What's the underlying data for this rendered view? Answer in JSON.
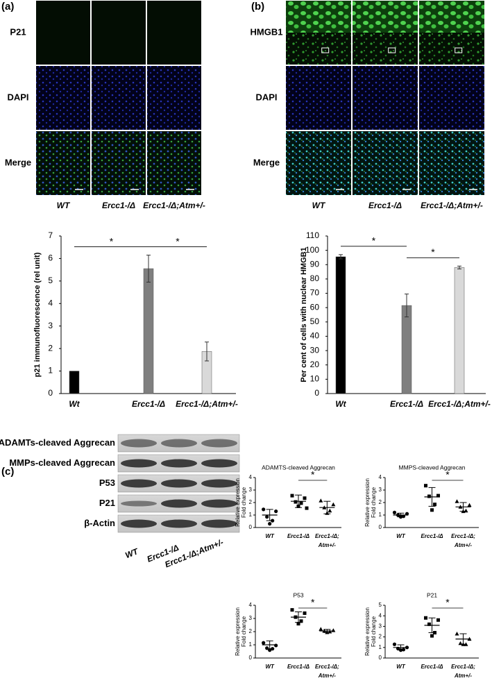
{
  "panels": {
    "a": "(a)",
    "b": "(b)",
    "c": "(c)"
  },
  "images_a": {
    "rows": [
      "P21",
      "DAPI",
      "Merge"
    ],
    "columns": [
      "WT",
      "Ercc1-/Δ",
      "Ercc1-/Δ;Atm+/-"
    ]
  },
  "images_b": {
    "rows": [
      "HMGB1",
      "DAPI",
      "Merge"
    ],
    "columns": [
      "WT",
      "Ercc1-/Δ",
      "Ercc1-/Δ;Atm+/-"
    ]
  },
  "blot": {
    "rows": [
      "ADAMTs-cleaved Aggrecan",
      "MMPs-cleaved Aggrecan",
      "P53",
      "P21",
      "β-Actin"
    ],
    "columns": [
      "WT",
      "Ercc1-/Δ",
      "Ercc1-/Δ;Atm+/-"
    ]
  },
  "chart_data": [
    {
      "type": "bar",
      "ylabel": "p21 immunofluorescence (rel unit)",
      "categories": [
        "Wt",
        "Ercc1-/Δ",
        "Ercc1-/Δ;Atm+/-"
      ],
      "values": [
        1,
        5.55,
        1.87
      ],
      "errors": [
        null,
        0.6,
        0.42
      ],
      "colors": [
        "#000000",
        "#7f7f7f",
        "#d9d9d9"
      ],
      "ylim": [
        0,
        7
      ],
      "yticks": [
        0,
        1,
        2,
        3,
        4,
        5,
        6,
        7
      ],
      "comparisons": [
        {
          "label": "*",
          "pair": [
            0,
            1
          ]
        },
        {
          "label": "*",
          "pair": [
            1,
            2
          ]
        }
      ]
    },
    {
      "type": "bar",
      "ylabel": "Per cent of cells with nuclear HMGB1",
      "categories": [
        "Wt",
        "Ercc1-/Δ",
        "Ercc1-/Δ;Atm+/-"
      ],
      "values": [
        95.5,
        61.5,
        88
      ],
      "errors": [
        1.5,
        8,
        1
      ],
      "colors": [
        "#000000",
        "#7f7f7f",
        "#d9d9d9"
      ],
      "ylim": [
        0,
        110
      ],
      "yticks": [
        0,
        10,
        20,
        30,
        40,
        50,
        60,
        70,
        80,
        90,
        100,
        110
      ],
      "comparisons": [
        {
          "label": "*",
          "pair": [
            0,
            1
          ]
        },
        {
          "label": "*",
          "pair": [
            1,
            2
          ]
        }
      ]
    },
    {
      "type": "dot",
      "title": "ADAMTS-cleaved Aggrecan",
      "ylabel": [
        "Relative expression",
        "Fold change"
      ],
      "categories": [
        "WT",
        "Ercc1-/Δ",
        [
          "Ercc1-/Δ;",
          "Atm+/-"
        ]
      ],
      "points": [
        [
          1.45,
          1.3,
          0.85,
          0.55,
          0.3
        ],
        [
          2.55,
          2.35,
          2.05,
          1.95,
          1.7,
          1.55
        ],
        [
          2.15,
          1.85,
          1.6,
          1.35,
          1.15
        ]
      ],
      "means": [
        1.0,
        2.1,
        1.6
      ],
      "sd": [
        0.45,
        0.5,
        0.5
      ],
      "ylim": [
        0,
        4
      ],
      "yticks": [
        0,
        1,
        2,
        3,
        4
      ],
      "comparisons": [
        {
          "label": "*",
          "pair": [
            1,
            2
          ]
        }
      ]
    },
    {
      "type": "dot",
      "title": "MMPS-cleaved Aggrecan",
      "ylabel": [
        "Relative expression",
        "Fold change"
      ],
      "categories": [
        "WT",
        "Ercc1-/Δ",
        [
          "Ercc1-/Δ;",
          "Atm+/-"
        ]
      ],
      "points": [
        [
          1.2,
          1.1,
          1.0,
          0.9,
          0.85
        ],
        [
          3.35,
          2.55,
          2.5,
          1.85,
          1.4
        ],
        [
          2.1,
          1.8,
          1.65,
          1.35,
          1.3
        ]
      ],
      "means": [
        1.0,
        2.45,
        1.65
      ],
      "sd": [
        0.15,
        0.75,
        0.35
      ],
      "ylim": [
        0,
        4
      ],
      "yticks": [
        0,
        1,
        2,
        3,
        4
      ],
      "comparisons": [
        {
          "label": "*",
          "pair": [
            1,
            2
          ]
        }
      ]
    },
    {
      "type": "dot",
      "title": "P53",
      "ylabel": [
        "Relative expression",
        "Fold change"
      ],
      "categories": [
        "WT",
        "Ercc1-/Δ",
        [
          "Ercc1-/Δ;",
          "Atm+/-"
        ]
      ],
      "points": [
        [
          1.15,
          0.95,
          0.75,
          0.7,
          0.6
        ],
        [
          3.65,
          3.4,
          3.1,
          2.8,
          2.6
        ],
        [
          2.2,
          2.1,
          2.05,
          2.0,
          1.95
        ]
      ],
      "means": [
        1.0,
        3.1,
        2.05
      ],
      "sd": [
        0.3,
        0.4,
        0.12
      ],
      "ylim": [
        0,
        4
      ],
      "yticks": [
        0,
        1,
        2,
        3,
        4
      ],
      "comparisons": [
        {
          "label": "*",
          "pair": [
            1,
            2
          ]
        }
      ]
    },
    {
      "type": "dot",
      "title": "P21",
      "ylabel": [
        "Relative expression",
        "Fold change"
      ],
      "categories": [
        "WT",
        "Ercc1-/Δ",
        [
          "Ercc1-/Δ;",
          "Atm+/-"
        ]
      ],
      "points": [
        [
          1.3,
          1.0,
          0.9,
          0.8,
          0.75
        ],
        [
          3.8,
          3.6,
          3.2,
          2.4,
          2.1
        ],
        [
          2.3,
          1.8,
          1.4,
          1.3,
          1.3
        ]
      ],
      "means": [
        1.0,
        3.1,
        1.8
      ],
      "sd": [
        0.25,
        0.7,
        0.5
      ],
      "ylim": [
        0,
        5
      ],
      "yticks": [
        0,
        1,
        2,
        3,
        4,
        5
      ],
      "comparisons": [
        {
          "label": "*",
          "pair": [
            1,
            2
          ]
        }
      ]
    }
  ]
}
